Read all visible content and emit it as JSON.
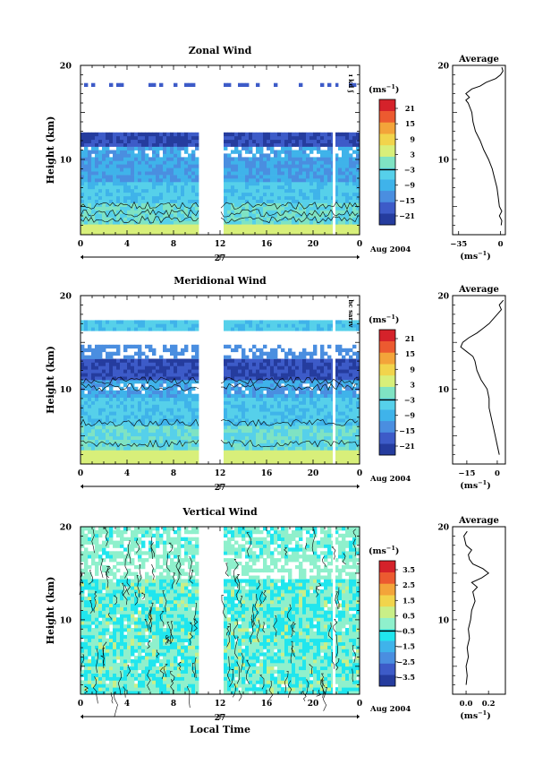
{
  "chart_data": [
    {
      "type": "heatmap",
      "title": "Zonal Wind",
      "ylabel": "Height (km)",
      "ylim": [
        2,
        20
      ],
      "yticks": [
        "10",
        "20"
      ],
      "xticks": [
        "0",
        "4",
        "8",
        "12",
        "16",
        "20",
        "0"
      ],
      "date_center": "27",
      "date_right": "Aug 2004",
      "colorbar": {
        "unit": "(ms",
        "unit_sup": "−1",
        "unit_close": ")",
        "ticks": [
          "21",
          "15",
          "9",
          "3",
          "−3",
          "−9",
          "−15",
          "−21"
        ]
      },
      "colors": [
        "#253c9e",
        "#3d5bc8",
        "#4a8ee0",
        "#3fb3ea",
        "#56d0ea",
        "#7fe3c3",
        "#d8ef7a",
        "#f1d44c",
        "#f3a43a",
        "#ec5a30",
        "#d5222a"
      ],
      "side_note": "ʃ pʞ ɪ",
      "average": {
        "title": "Average",
        "xlabel": "(ms",
        "xlabel_sup": "−1",
        "xlabel_close": ")",
        "xticks": [
          "−35",
          "0"
        ],
        "xlim": [
          -40,
          4
        ],
        "profile": [
          [
            0.5,
            3
          ],
          [
            1,
            3.5
          ],
          [
            -1,
            4
          ],
          [
            1,
            4.5
          ],
          [
            -1,
            5
          ],
          [
            -2,
            6
          ],
          [
            -3,
            7
          ],
          [
            -5,
            8
          ],
          [
            -7,
            9
          ],
          [
            -10,
            10
          ],
          [
            -14,
            11
          ],
          [
            -17,
            12
          ],
          [
            -21,
            13
          ],
          [
            -23,
            14
          ],
          [
            -24,
            15
          ],
          [
            -27,
            16
          ],
          [
            -29,
            16.3
          ],
          [
            -26,
            16.6
          ],
          [
            -29,
            17
          ],
          [
            -24,
            17.5
          ],
          [
            -17,
            17.8
          ],
          [
            -12,
            18.2
          ],
          [
            -4,
            18.6
          ],
          [
            0,
            19
          ],
          [
            2,
            19.4
          ],
          [
            1,
            19.8
          ]
        ]
      }
    },
    {
      "type": "heatmap",
      "title": "Meridional Wind",
      "ylabel": "Height (km)",
      "ylim": [
        2,
        20
      ],
      "yticks": [
        "10",
        "20"
      ],
      "xticks": [
        "0",
        "4",
        "8",
        "12",
        "16",
        "20",
        "0"
      ],
      "date_center": "27",
      "date_right": "Aug 2004",
      "colorbar": {
        "unit": "(ms",
        "unit_sup": "−1",
        "unit_close": ")",
        "ticks": [
          "21",
          "15",
          "9",
          "3",
          "−3",
          "−9",
          "−15",
          "−21"
        ]
      },
      "colors": [
        "#253c9e",
        "#3d5bc8",
        "#4a8ee0",
        "#3fb3ea",
        "#56d0ea",
        "#7fe3c3",
        "#d8ef7a",
        "#f1d44c",
        "#f3a43a",
        "#ec5a30",
        "#d5222a"
      ],
      "side_note": "ʌɪɹɐs ɔɥ",
      "average": {
        "title": "Average",
        "xlabel": "(ms",
        "xlabel_sup": "−1",
        "xlabel_close": ")",
        "xticks": [
          "−15",
          "0"
        ],
        "xlim": [
          -22,
          4
        ],
        "profile": [
          [
            1,
            3
          ],
          [
            0,
            4
          ],
          [
            -1,
            5
          ],
          [
            -2,
            6
          ],
          [
            -3,
            7
          ],
          [
            -4,
            8
          ],
          [
            -4,
            9
          ],
          [
            -5,
            10
          ],
          [
            -8,
            11
          ],
          [
            -10,
            12
          ],
          [
            -11,
            13
          ],
          [
            -12,
            13.5
          ],
          [
            -15,
            14
          ],
          [
            -18,
            14.5
          ],
          [
            -17,
            15
          ],
          [
            -14,
            15.5
          ],
          [
            -10,
            16
          ],
          [
            -7,
            16.5
          ],
          [
            -4,
            17
          ],
          [
            -2,
            17.5
          ],
          [
            0,
            18
          ],
          [
            2,
            18.5
          ],
          [
            1,
            19
          ],
          [
            3,
            19.5
          ]
        ]
      }
    },
    {
      "type": "heatmap",
      "title": "Vertical Wind",
      "ylabel": "Height (km)",
      "ylim": [
        2,
        20
      ],
      "yticks": [
        "10",
        "20"
      ],
      "xticks": [
        "0",
        "4",
        "8",
        "12",
        "16",
        "20",
        "0"
      ],
      "date_center": "27",
      "date_right": "Aug 2004",
      "xlabel": "Local Time",
      "colorbar": {
        "unit": "(ms",
        "unit_sup": "−1",
        "unit_close": ")",
        "ticks": [
          "3.5",
          "2.5",
          "1.5",
          "0.5",
          "−0.5",
          "−1.5",
          "−2.5",
          "−3.5"
        ]
      },
      "colors": [
        "#253c9e",
        "#3d5bc8",
        "#4a8ee0",
        "#3fb3ea",
        "#20e6ee",
        "#8ff0cc",
        "#c9ef88",
        "#f1d44c",
        "#f3a43a",
        "#ec5a30",
        "#d5222a"
      ],
      "average": {
        "title": "Average",
        "xlabel": "(ms",
        "xlabel_sup": "−1",
        "xlabel_close": ")",
        "xticks": [
          "0.0",
          "0.2"
        ],
        "xlim": [
          -0.12,
          0.35
        ],
        "profile": [
          [
            0.0,
            3
          ],
          [
            0.01,
            4
          ],
          [
            0.0,
            5
          ],
          [
            0.02,
            6
          ],
          [
            0.01,
            7
          ],
          [
            0.03,
            8
          ],
          [
            0.02,
            9
          ],
          [
            0.04,
            10
          ],
          [
            0.05,
            11
          ],
          [
            0.08,
            12
          ],
          [
            0.06,
            13
          ],
          [
            0.1,
            13.5
          ],
          [
            0.05,
            14
          ],
          [
            0.14,
            14.5
          ],
          [
            0.2,
            15
          ],
          [
            0.15,
            15.5
          ],
          [
            0.06,
            16
          ],
          [
            0.03,
            16.5
          ],
          [
            0.02,
            17
          ],
          [
            0.05,
            17.5
          ],
          [
            0.0,
            18
          ],
          [
            -0.02,
            19
          ],
          [
            0.01,
            19.5
          ]
        ]
      }
    }
  ]
}
